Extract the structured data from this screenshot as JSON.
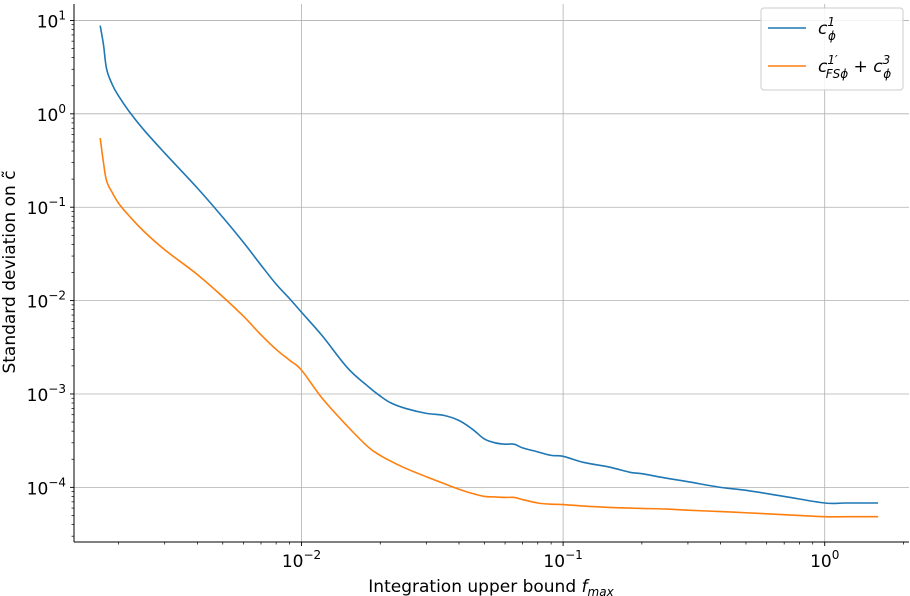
{
  "chart_data": {
    "type": "line",
    "x_scale": "log",
    "y_scale": "log",
    "xlim": [
      0.00135,
      2.1
    ],
    "ylim": [
      2.6e-05,
      15
    ],
    "grid": true,
    "legend_position": "top-right",
    "xlabel": {
      "text": "Integration upper bound ",
      "var": "f",
      "sub": "max"
    },
    "ylabel": "Standard deviation on c̃",
    "x_ticks": [
      {
        "value": 0.01,
        "base": "10",
        "exp": "−2"
      },
      {
        "value": 0.1,
        "base": "10",
        "exp": "−1"
      },
      {
        "value": 1,
        "base": "10",
        "exp": "0"
      }
    ],
    "y_ticks": [
      {
        "value": 10,
        "base": "10",
        "exp": "1"
      },
      {
        "value": 1,
        "base": "10",
        "exp": "0"
      },
      {
        "value": 0.1,
        "base": "10",
        "exp": "−1"
      },
      {
        "value": 0.01,
        "base": "10",
        "exp": "−2"
      },
      {
        "value": 0.001,
        "base": "10",
        "exp": "−3"
      },
      {
        "value": 0.0001,
        "base": "10",
        "exp": "−4"
      }
    ],
    "series": [
      {
        "name": "c_ϕ^1",
        "legend": {
          "main": "c",
          "sub": "ϕ",
          "sup": "1"
        },
        "color": "#1f77b4",
        "x": [
          0.0017,
          0.00175,
          0.0018,
          0.0019,
          0.002,
          0.0022,
          0.0025,
          0.003,
          0.004,
          0.005,
          0.006,
          0.007,
          0.008,
          0.009,
          0.01,
          0.012,
          0.015,
          0.018,
          0.02,
          0.022,
          0.025,
          0.03,
          0.035,
          0.04,
          0.045,
          0.05,
          0.055,
          0.06,
          0.065,
          0.07,
          0.08,
          0.09,
          0.1,
          0.12,
          0.15,
          0.18,
          0.2,
          0.25,
          0.3,
          0.4,
          0.5,
          0.7,
          1.0,
          1.2,
          1.6
        ],
        "y": [
          8.8,
          5.5,
          3.0,
          2.0,
          1.55,
          1.05,
          0.67,
          0.38,
          0.16,
          0.078,
          0.042,
          0.024,
          0.015,
          0.0105,
          0.0075,
          0.0042,
          0.0019,
          0.0012,
          0.00095,
          0.0008,
          0.0007,
          0.00062,
          0.00059,
          0.00052,
          0.00042,
          0.00033,
          0.0003,
          0.00029,
          0.00029,
          0.000265,
          0.00024,
          0.00022,
          0.000215,
          0.000185,
          0.000165,
          0.000145,
          0.00014,
          0.000125,
          0.000115,
          0.0001,
          9.3e-05,
          8e-05,
          6.8e-05,
          6.8e-05,
          6.8e-05
        ]
      },
      {
        "name": "c_FSϕ^1′ + c_ϕ^3",
        "legend": {
          "main": "c",
          "sub": "FSϕ",
          "sup": "1′",
          "plus": " + ",
          "main2": "c",
          "sub2": "ϕ",
          "sup2": "3"
        },
        "color": "#ff7f0e",
        "x": [
          0.0017,
          0.00175,
          0.0018,
          0.0019,
          0.002,
          0.0022,
          0.0025,
          0.003,
          0.004,
          0.005,
          0.006,
          0.007,
          0.008,
          0.009,
          0.01,
          0.012,
          0.015,
          0.018,
          0.02,
          0.022,
          0.025,
          0.03,
          0.035,
          0.04,
          0.045,
          0.05,
          0.055,
          0.06,
          0.065,
          0.07,
          0.08,
          0.09,
          0.1,
          0.12,
          0.15,
          0.18,
          0.2,
          0.25,
          0.3,
          0.4,
          0.5,
          0.7,
          1.0,
          1.2,
          1.6
        ],
        "y": [
          0.55,
          0.3,
          0.19,
          0.14,
          0.11,
          0.08,
          0.055,
          0.035,
          0.019,
          0.011,
          0.0068,
          0.0043,
          0.003,
          0.0023,
          0.0018,
          0.0009,
          0.00045,
          0.00027,
          0.00022,
          0.00019,
          0.00016,
          0.00013,
          0.00011,
          9.55e-05,
          8.6e-05,
          8e-05,
          7.9e-05,
          7.8e-05,
          7.8e-05,
          7.4e-05,
          6.8e-05,
          6.6e-05,
          6.55e-05,
          6.3e-05,
          6.1e-05,
          6e-05,
          5.95e-05,
          5.85e-05,
          5.7e-05,
          5.5e-05,
          5.35e-05,
          5.1e-05,
          4.85e-05,
          4.85e-05,
          4.85e-05
        ]
      }
    ]
  }
}
